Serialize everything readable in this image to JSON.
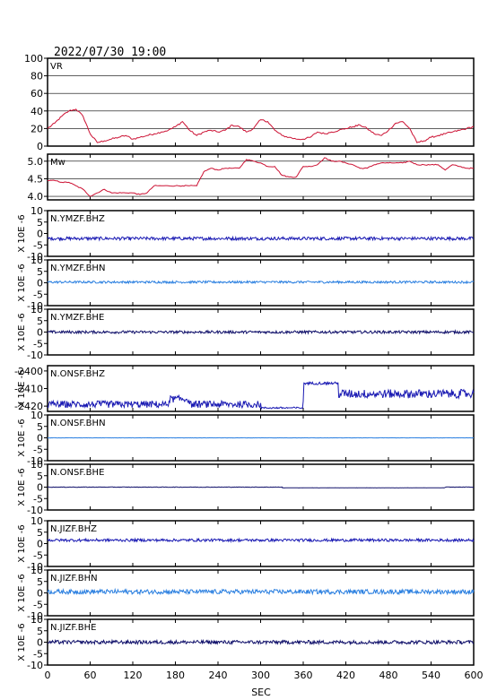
{
  "chart_data": {
    "type": "line",
    "title": "2022/07/30 19:00",
    "xlabel": "SEC",
    "xlim": [
      0,
      600
    ],
    "xticks": [
      "0",
      "60",
      "120",
      "180",
      "240",
      "300",
      "360",
      "420",
      "480",
      "540",
      "600"
    ],
    "panels": [
      {
        "name": "VR",
        "color": "#cc1133",
        "ylim": [
          0,
          100
        ],
        "yticks": [
          "0",
          "20",
          "40",
          "60",
          "80",
          "100"
        ],
        "grid": true,
        "x": [
          0,
          10,
          20,
          30,
          40,
          50,
          60,
          70,
          80,
          90,
          100,
          110,
          120,
          130,
          140,
          150,
          160,
          170,
          180,
          190,
          200,
          210,
          220,
          230,
          240,
          250,
          260,
          270,
          280,
          290,
          300,
          310,
          320,
          330,
          340,
          350,
          360,
          370,
          380,
          390,
          400,
          410,
          420,
          430,
          440,
          450,
          460,
          470,
          480,
          490,
          500,
          510,
          520,
          530,
          540,
          550,
          560,
          570,
          580,
          590,
          600
        ],
        "values": [
          20,
          26,
          34,
          40,
          42,
          34,
          14,
          4,
          6,
          8,
          10,
          12,
          8,
          10,
          12,
          14,
          16,
          18,
          22,
          28,
          18,
          12,
          16,
          18,
          16,
          18,
          24,
          22,
          16,
          20,
          30,
          28,
          18,
          12,
          10,
          8,
          8,
          10,
          16,
          14,
          16,
          18,
          20,
          22,
          24,
          20,
          14,
          12,
          18,
          26,
          28,
          20,
          4,
          6,
          10,
          12,
          14,
          16,
          18,
          20,
          22
        ]
      },
      {
        "name": "Mw",
        "color": "#cc1133",
        "ylim": [
          3.9,
          5.2
        ],
        "yticks": [
          "4.0",
          "4.5",
          "5.0"
        ],
        "grid": true,
        "x": [
          0,
          10,
          20,
          30,
          40,
          50,
          60,
          70,
          80,
          90,
          100,
          110,
          120,
          130,
          140,
          150,
          160,
          170,
          180,
          190,
          200,
          210,
          220,
          230,
          240,
          250,
          260,
          270,
          280,
          290,
          300,
          310,
          320,
          330,
          340,
          350,
          360,
          370,
          380,
          390,
          400,
          410,
          420,
          430,
          440,
          450,
          460,
          470,
          480,
          490,
          500,
          510,
          520,
          530,
          540,
          550,
          560,
          570,
          580,
          590,
          600
        ],
        "values": [
          4.45,
          4.45,
          4.4,
          4.4,
          4.3,
          4.2,
          4.0,
          4.1,
          4.2,
          4.1,
          4.1,
          4.1,
          4.1,
          4.05,
          4.1,
          4.3,
          4.3,
          4.3,
          4.3,
          4.3,
          4.3,
          4.3,
          4.7,
          4.8,
          4.75,
          4.8,
          4.8,
          4.8,
          5.05,
          5.0,
          4.95,
          4.85,
          4.85,
          4.6,
          4.55,
          4.55,
          4.85,
          4.85,
          4.9,
          5.1,
          5.0,
          5.0,
          4.95,
          4.9,
          4.8,
          4.8,
          4.9,
          4.95,
          4.95,
          4.95,
          4.95,
          5.0,
          4.9,
          4.9,
          4.9,
          4.9,
          4.75,
          4.9,
          4.85,
          4.8,
          4.8
        ]
      },
      {
        "name": "N.YMZF.BHZ",
        "ylabel": "X 10E -6",
        "color": "#1a1ab3",
        "ylim": [
          -10,
          10
        ],
        "yticks": [
          "-10",
          "-5",
          "0",
          "5",
          "10"
        ],
        "grid": false,
        "offset": -2.2,
        "amplitude": 0.7
      },
      {
        "name": "N.YMZF.BHN",
        "ylabel": "X 10E -6",
        "color": "#2a7fe0",
        "ylim": [
          -10,
          10
        ],
        "yticks": [
          "-10",
          "-5",
          "0",
          "5",
          "10"
        ],
        "grid": false,
        "offset": 0.3,
        "amplitude": 0.5
      },
      {
        "name": "N.YMZF.BHE",
        "ylabel": "X 10E -6",
        "color": "#10106a",
        "ylim": [
          -10,
          10
        ],
        "yticks": [
          "-10",
          "-5",
          "0",
          "5",
          "10"
        ],
        "grid": false,
        "offset": 0.0,
        "amplitude": 0.6
      },
      {
        "name": "N.ONSF.BHZ",
        "ylabel": "X 10E -6",
        "color": "#1a1ab3",
        "ylim": [
          -2423,
          -2397
        ],
        "yticks": [
          "-2420",
          "-2410",
          "-2400"
        ],
        "grid": false,
        "offset": -2419,
        "amplitude": 2.5
      },
      {
        "name": "N.ONSF.BHN",
        "ylabel": "X 10E -6",
        "color": "#2a7fe0",
        "ylim": [
          -10,
          10
        ],
        "yticks": [
          "-10",
          "-5",
          "0",
          "5",
          "10"
        ],
        "grid": false,
        "offset": 0.0,
        "amplitude": 0.05
      },
      {
        "name": "N.ONSF.BHE",
        "ylabel": "X 10E -6",
        "color": "#10106a",
        "ylim": [
          -10,
          10
        ],
        "yticks": [
          "-10",
          "-5",
          "0",
          "5",
          "10"
        ],
        "grid": false,
        "offset": 0.0,
        "amplitude": 0.1
      },
      {
        "name": "N.JIZF.BHZ",
        "ylabel": "X 10E -6",
        "color": "#1a1ab3",
        "ylim": [
          -10,
          10
        ],
        "yticks": [
          "-10",
          "-5",
          "0",
          "5",
          "10"
        ],
        "grid": false,
        "offset": 1.5,
        "amplitude": 0.6
      },
      {
        "name": "N.JIZF.BHN",
        "ylabel": "X 10E -6",
        "color": "#2a7fe0",
        "ylim": [
          -10,
          10
        ],
        "yticks": [
          "-10",
          "-5",
          "0",
          "5",
          "10"
        ],
        "grid": false,
        "offset": 0.5,
        "amplitude": 1.0
      },
      {
        "name": "N.JIZF.BHE",
        "ylabel": "X 10E -6",
        "color": "#10106a",
        "ylim": [
          -10,
          10
        ],
        "yticks": [
          "-10",
          "-5",
          "0",
          "5",
          "10"
        ],
        "grid": false,
        "offset": 0.0,
        "amplitude": 0.8
      }
    ]
  }
}
